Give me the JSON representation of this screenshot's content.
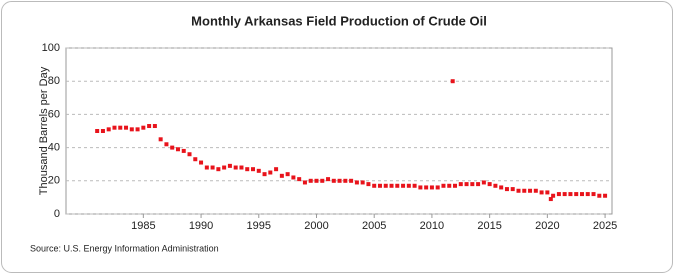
{
  "chart_data": {
    "type": "scatter",
    "title": "Monthly Arkansas Field Production of Crude Oil",
    "y_label": "Thousand Barrels per Day",
    "source": "Source: U.S. Energy Information Administration",
    "color": "#e8131b",
    "grid": true,
    "xlim": [
      1978.3,
      2025.6
    ],
    "ylim": [
      0,
      100
    ],
    "xticks": [
      1985,
      1990,
      1995,
      2000,
      2005,
      2010,
      2015,
      2020,
      2025
    ],
    "yticks": [
      0,
      20,
      40,
      60,
      80,
      100
    ],
    "x": [
      1981,
      1981.5,
      1982,
      1982.5,
      1983,
      1983.5,
      1984,
      1984.5,
      1985,
      1985.5,
      1986,
      1986.5,
      1987,
      1987.5,
      1988,
      1988.5,
      1989,
      1989.5,
      1990,
      1990.5,
      1991,
      1991.5,
      1992,
      1992.5,
      1993,
      1993.5,
      1994,
      1994.5,
      1995,
      1995.5,
      1996,
      1996.5,
      1997,
      1997.5,
      1998,
      1998.5,
      1999,
      1999.5,
      2000,
      2000.5,
      2001,
      2001.5,
      2002,
      2002.5,
      2003,
      2003.5,
      2004,
      2004.5,
      2005,
      2005.5,
      2006,
      2006.5,
      2007,
      2007.5,
      2008,
      2008.5,
      2009,
      2009.5,
      2010,
      2010.5,
      2011,
      2011.5,
      2011.8,
      2012,
      2012.5,
      2013,
      2013.5,
      2014,
      2014.5,
      2015,
      2015.5,
      2016,
      2016.5,
      2017,
      2017.5,
      2018,
      2018.5,
      2019,
      2019.5,
      2020,
      2020.3,
      2020.5,
      2021,
      2021.5,
      2022,
      2022.5,
      2023,
      2023.5,
      2024,
      2024.5,
      2025
    ],
    "values": [
      50,
      50,
      51,
      52,
      52,
      52,
      51,
      51,
      52,
      53,
      53,
      45,
      42,
      40,
      39,
      38,
      36,
      33,
      31,
      28,
      28,
      27,
      28,
      29,
      28,
      28,
      27,
      27,
      26,
      24,
      25,
      27,
      23,
      24,
      22,
      21,
      19,
      20,
      20,
      20,
      21,
      20,
      20,
      20,
      20,
      19,
      19,
      18,
      17,
      17,
      17,
      17,
      17,
      17,
      17,
      17,
      16,
      16,
      16,
      16,
      17,
      17,
      80,
      17,
      18,
      18,
      18,
      18,
      19,
      18,
      17,
      16,
      15,
      15,
      14,
      14,
      14,
      14,
      13,
      13,
      9,
      11,
      12,
      12,
      12,
      12,
      12,
      12,
      12,
      11,
      11
    ]
  }
}
